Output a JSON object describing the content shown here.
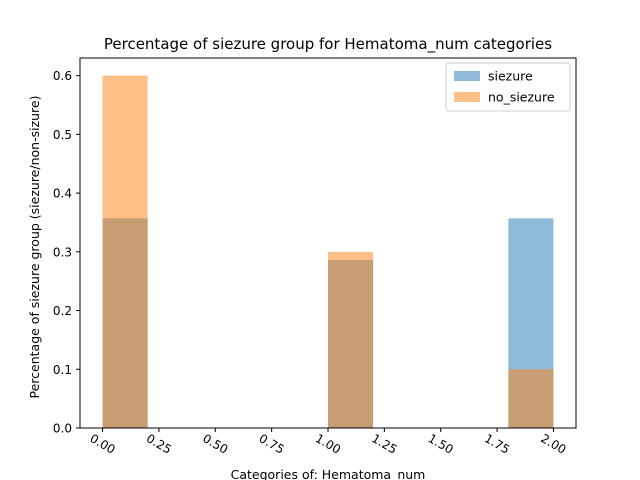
{
  "chart_data": {
    "type": "bar",
    "title": "Percentage of siezure group for Hematoma_num categories",
    "xlabel": "Categories of: Hematoma_num",
    "ylabel": "Percentage of siezure group (siezure/non-sizure)",
    "xlim": [
      -0.1,
      2.1
    ],
    "ylim": [
      0,
      0.63
    ],
    "xticks": [
      "0.00",
      "0.25",
      "0.50",
      "0.75",
      "1.00",
      "1.25",
      "1.50",
      "1.75",
      "2.00"
    ],
    "yticks": [
      "0.0",
      "0.1",
      "0.2",
      "0.3",
      "0.4",
      "0.5",
      "0.6"
    ],
    "bin_width": 0.2,
    "legend_position": "top-right",
    "series": [
      {
        "name": "siezure",
        "color": "#1f77b4",
        "opacity": 0.5,
        "bins": [
          {
            "x_start": 0.0,
            "value": 0.357
          },
          {
            "x_start": 1.0,
            "value": 0.286
          },
          {
            "x_start": 1.8,
            "value": 0.357
          }
        ]
      },
      {
        "name": "no_siezure",
        "color": "#ff7f0e",
        "opacity": 0.5,
        "bins": [
          {
            "x_start": 0.0,
            "value": 0.6
          },
          {
            "x_start": 1.0,
            "value": 0.3
          },
          {
            "x_start": 1.8,
            "value": 0.1
          }
        ]
      }
    ]
  }
}
